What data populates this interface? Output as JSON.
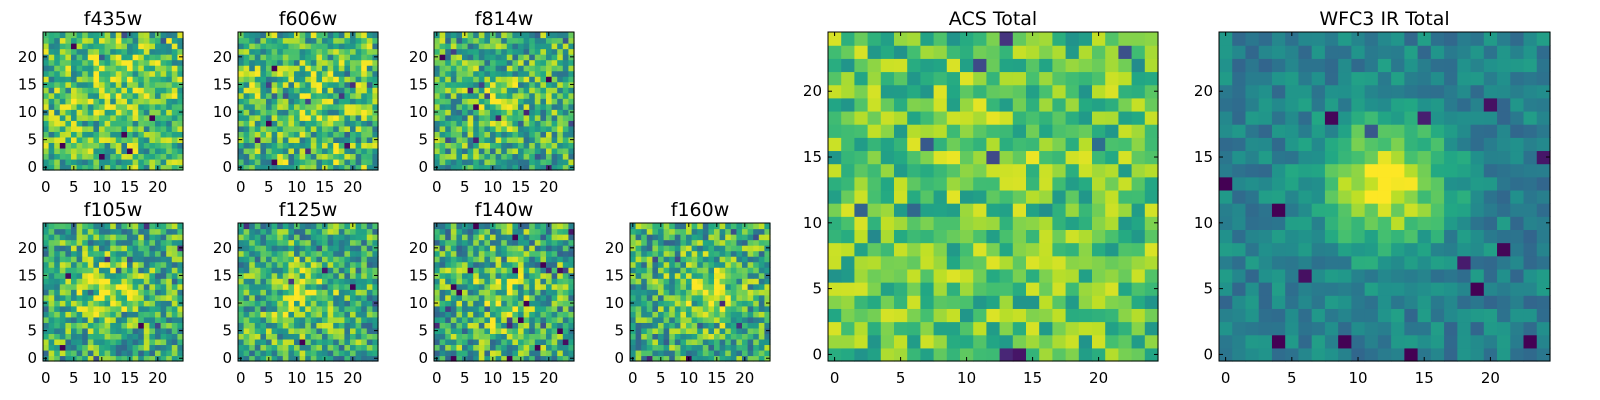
{
  "chart_data": [
    {
      "type": "heatmap",
      "title": "f435w",
      "colormap": "viridis",
      "xlim": [
        0,
        25
      ],
      "ylim": [
        0,
        25
      ],
      "xticks": [
        0,
        5,
        10,
        15,
        20
      ],
      "yticks": [
        0,
        5,
        10,
        15,
        20
      ],
      "grid": false,
      "peak": {
        "x": 14,
        "y": 16,
        "amp": 0.1,
        "width": 6
      },
      "noise": 0.3,
      "base": 0.68,
      "seed": 11
    },
    {
      "type": "heatmap",
      "title": "f606w",
      "colormap": "viridis",
      "xlim": [
        0,
        25
      ],
      "ylim": [
        0,
        25
      ],
      "xticks": [
        0,
        5,
        10,
        15,
        20
      ],
      "yticks": [
        0,
        5,
        10,
        15,
        20
      ],
      "grid": false,
      "peak": {
        "x": 12,
        "y": 12,
        "amp": 0.05,
        "width": 6
      },
      "noise": 0.32,
      "base": 0.68,
      "seed": 23
    },
    {
      "type": "heatmap",
      "title": "f814w",
      "colormap": "viridis",
      "xlim": [
        0,
        25
      ],
      "ylim": [
        0,
        25
      ],
      "xticks": [
        0,
        5,
        10,
        15,
        20
      ],
      "yticks": [
        0,
        5,
        10,
        15,
        20
      ],
      "grid": false,
      "peak": {
        "x": 11,
        "y": 12,
        "amp": 0.22,
        "width": 3
      },
      "noise": 0.3,
      "base": 0.64,
      "seed": 37
    },
    {
      "type": "heatmap",
      "title": "f105w",
      "colormap": "viridis",
      "xlim": [
        0,
        25
      ],
      "ylim": [
        0,
        25
      ],
      "xticks": [
        0,
        5,
        10,
        15,
        20
      ],
      "yticks": [
        0,
        5,
        10,
        15,
        20
      ],
      "grid": false,
      "peak": {
        "x": 11,
        "y": 12,
        "amp": 0.25,
        "width": 4
      },
      "noise": 0.3,
      "base": 0.62,
      "seed": 41
    },
    {
      "type": "heatmap",
      "title": "f125w",
      "colormap": "viridis",
      "xlim": [
        0,
        25
      ],
      "ylim": [
        0,
        25
      ],
      "xticks": [
        0,
        5,
        10,
        15,
        20
      ],
      "yticks": [
        0,
        5,
        10,
        15,
        20
      ],
      "grid": false,
      "peak": {
        "x": 11,
        "y": 11,
        "amp": 0.22,
        "width": 4
      },
      "noise": 0.3,
      "base": 0.62,
      "seed": 53
    },
    {
      "type": "heatmap",
      "title": "f140w",
      "colormap": "viridis",
      "xlim": [
        0,
        25
      ],
      "ylim": [
        0,
        25
      ],
      "xticks": [
        0,
        5,
        10,
        15,
        20
      ],
      "yticks": [
        0,
        5,
        10,
        15,
        20
      ],
      "grid": false,
      "peak": {
        "x": 11,
        "y": 11,
        "amp": 0.18,
        "width": 4
      },
      "noise": 0.32,
      "base": 0.62,
      "seed": 67
    },
    {
      "type": "heatmap",
      "title": "f160w",
      "colormap": "viridis",
      "xlim": [
        0,
        25
      ],
      "ylim": [
        0,
        25
      ],
      "xticks": [
        0,
        5,
        10,
        15,
        20
      ],
      "yticks": [
        0,
        5,
        10,
        15,
        20
      ],
      "grid": false,
      "peak": {
        "x": 13,
        "y": 12,
        "amp": 0.25,
        "width": 4
      },
      "noise": 0.3,
      "base": 0.62,
      "seed": 79
    },
    {
      "type": "heatmap",
      "title": "ACS Total",
      "colormap": "viridis",
      "xlim": [
        0,
        25
      ],
      "ylim": [
        0,
        25
      ],
      "xticks": [
        0,
        5,
        10,
        15,
        20
      ],
      "yticks": [
        0,
        5,
        10,
        15,
        20
      ],
      "grid": false,
      "peak": {
        "x": 12,
        "y": 13,
        "amp": 0.04,
        "width": 6
      },
      "noise": 0.22,
      "base": 0.72,
      "seed": 97
    },
    {
      "type": "heatmap",
      "title": "WFC3 IR Total",
      "colormap": "viridis",
      "xlim": [
        0,
        25
      ],
      "ylim": [
        0,
        25
      ],
      "xticks": [
        0,
        5,
        10,
        15,
        20
      ],
      "yticks": [
        0,
        5,
        10,
        15,
        20
      ],
      "grid": false,
      "peak": {
        "x": 12,
        "y": 13,
        "amp": 0.55,
        "width": 3.2
      },
      "noise": 0.12,
      "base": 0.44,
      "seed": 131
    }
  ]
}
